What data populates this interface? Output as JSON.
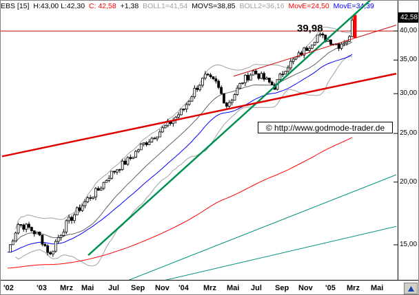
{
  "header": {
    "symbol": "EBS [15]",
    "ohlc": "H:43,00  L:42,30",
    "close": "C: 42,58",
    "change": "+1,38",
    "boll1": "BOLL1=41,54",
    "movs": "MOVS=38,85",
    "boll2": "BOLL2=36,16",
    "move1": "MovE=24,50",
    "move2": "MovE=34,39"
  },
  "colors": {
    "close": "#ff0000",
    "boll": "#a0a0a0",
    "move1": "#ff0000",
    "move2": "#0000ff",
    "candle": "#000000",
    "trend_green": "#009050",
    "trend_red": "#e00000"
  },
  "price_box": "42,58",
  "annotation_level": "39,98",
  "watermark": "© http://www.godmode-trader.de",
  "nav_icon": "up-arrow-icon",
  "chart_data": {
    "type": "candlestick",
    "y_scale": "log",
    "ylim": [
      12.5,
      48
    ],
    "y_ticks": [
      {
        "v": 40,
        "label": "40,00"
      },
      {
        "v": 35,
        "label": "35,00"
      },
      {
        "v": 30,
        "label": "30,00"
      },
      {
        "v": 25,
        "label": "25,00"
      },
      {
        "v": 20,
        "label": "20,00"
      },
      {
        "v": 15,
        "label": "15,00"
      }
    ],
    "x_ticks": [
      "'02",
      "'03",
      "Mrz",
      "Mai",
      "Jul",
      "Sep",
      "Nov",
      "'04",
      "Mrz",
      "Mai",
      "Jul",
      "Sep",
      "Nov",
      "'05",
      "Mrz",
      "Mai"
    ],
    "horizontal_line": 39.98,
    "trendlines": [
      {
        "color": "trend_green",
        "from": [
          "Mrz '03",
          14.3
        ],
        "to": [
          "Mai '05",
          47.5
        ],
        "width": 2.5
      },
      {
        "color": "trend_red",
        "from": [
          "'02",
          22.5
        ],
        "to": [
          "Mai '05",
          32.3
        ],
        "width": 2.5
      },
      {
        "color": "trend_red_thin",
        "from": [
          "Mai '04",
          32.5
        ],
        "to": [
          "Mai '05",
          40.0
        ],
        "width": 1
      },
      {
        "color": "trend_teal",
        "from": [
          "Jun '03",
          12.6
        ],
        "to": [
          "Mai '05",
          20.0
        ],
        "width": 1
      },
      {
        "color": "trend_teal",
        "from": [
          "'03",
          11.2
        ],
        "to": [
          "Mai '05",
          16.0
        ],
        "width": 1
      }
    ],
    "series_anchor_prices": [
      [
        0,
        14.5
      ],
      [
        4,
        16.5
      ],
      [
        8,
        16.2
      ],
      [
        12,
        15.6
      ],
      [
        16,
        14.3
      ],
      [
        18,
        15.2
      ],
      [
        22,
        16.5
      ],
      [
        26,
        17.5
      ],
      [
        30,
        18.5
      ],
      [
        34,
        19.3
      ],
      [
        38,
        20.6
      ],
      [
        42,
        21.5
      ],
      [
        46,
        22.3
      ],
      [
        50,
        23.6
      ],
      [
        54,
        24.5
      ],
      [
        58,
        25.5
      ],
      [
        62,
        26.6
      ],
      [
        66,
        28
      ],
      [
        70,
        30.5
      ],
      [
        74,
        32.4
      ],
      [
        78,
        31.5
      ],
      [
        82,
        28.5
      ],
      [
        84,
        29.4
      ],
      [
        88,
        31.8
      ],
      [
        92,
        33.2
      ],
      [
        96,
        32.1
      ],
      [
        100,
        31
      ],
      [
        104,
        33.8
      ],
      [
        108,
        35.3
      ],
      [
        112,
        37
      ],
      [
        116,
        39.2
      ],
      [
        120,
        38.4
      ],
      [
        124,
        37.5
      ],
      [
        126,
        38.2
      ],
      [
        128,
        38.6
      ],
      [
        129,
        42.58
      ]
    ]
  }
}
